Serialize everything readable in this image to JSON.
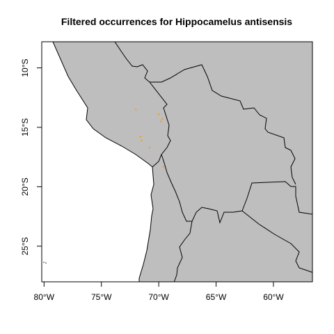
{
  "title": "Filtered occurrences for Hippocamelus antisensis",
  "map": {
    "projection": "longitude/latitude",
    "lon_range": [
      -80.2,
      -56.6
    ],
    "lat_range": [
      -28.0,
      -7.8
    ],
    "x_ticks": [
      {
        "value": -80,
        "label": "80°W"
      },
      {
        "value": -75,
        "label": "75°W"
      },
      {
        "value": -70,
        "label": "70°W"
      },
      {
        "value": -65,
        "label": "65°W"
      },
      {
        "value": -60,
        "label": "60°W"
      }
    ],
    "y_ticks": [
      {
        "value": -10,
        "label": "10°S"
      },
      {
        "value": -15,
        "label": "15°S"
      },
      {
        "value": -20,
        "label": "20°S"
      },
      {
        "value": -25,
        "label": "25°S"
      }
    ],
    "colors": {
      "land": "#bebebe",
      "ocean": "#ffffff",
      "borders": "#000000",
      "occurrence": "#f0a030"
    }
  },
  "occurrences": [
    {
      "lon": -72.0,
      "lat": -13.5
    },
    {
      "lon": -70.0,
      "lat": -13.9
    },
    {
      "lon": -69.7,
      "lat": -14.3
    },
    {
      "lon": -69.8,
      "lat": -14.5
    },
    {
      "lon": -71.6,
      "lat": -15.8
    },
    {
      "lon": -71.5,
      "lat": -16.1
    },
    {
      "lon": -70.8,
      "lat": -16.7
    },
    {
      "lon": -69.6,
      "lat": -18.3
    }
  ],
  "chart_data": {
    "type": "scatter",
    "title": "Filtered occurrences for Hippocamelus antisensis",
    "xlabel": "",
    "ylabel": "",
    "xlim": [
      -80.2,
      -56.6
    ],
    "ylim": [
      -28.0,
      -7.8
    ],
    "x": [
      -72.0,
      -70.0,
      -69.7,
      -69.8,
      -71.6,
      -71.5,
      -70.8,
      -69.6
    ],
    "y": [
      -13.5,
      -13.9,
      -14.3,
      -14.5,
      -15.8,
      -16.1,
      -16.7,
      -18.3
    ]
  }
}
